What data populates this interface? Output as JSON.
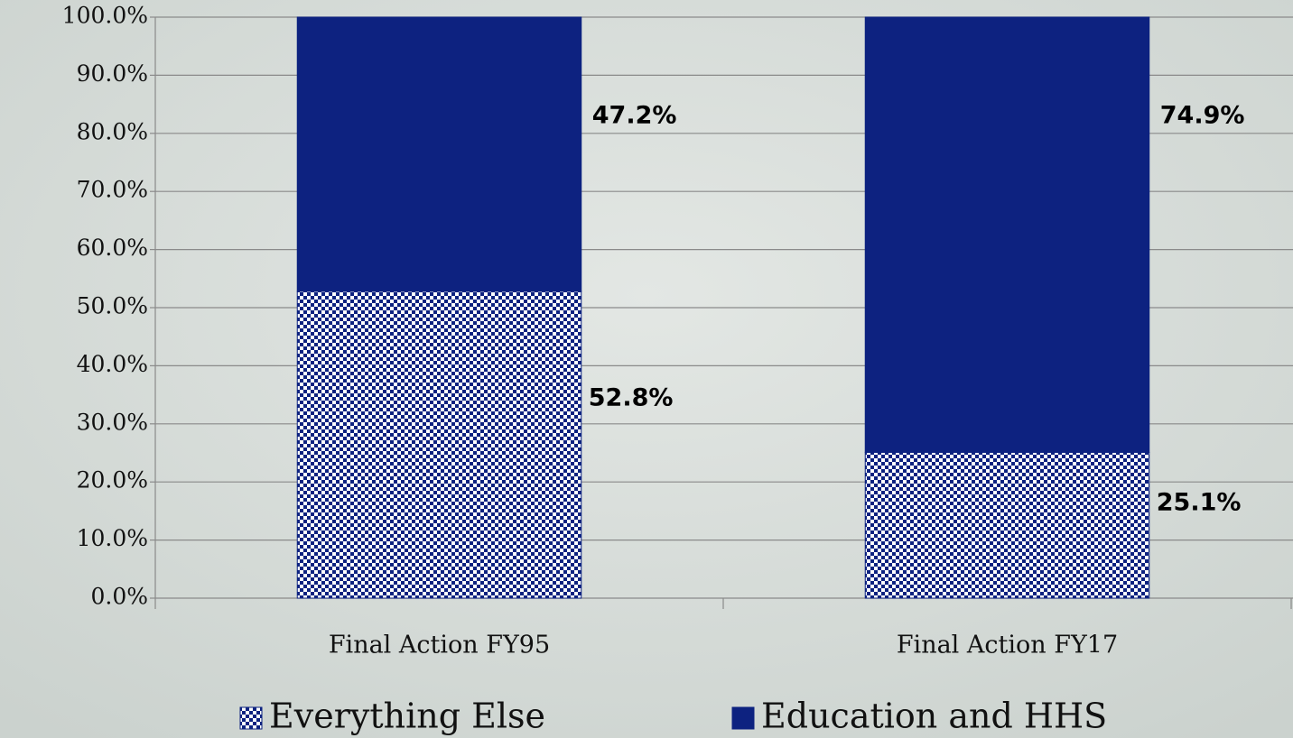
{
  "chart_data": {
    "type": "stacked_bar",
    "categories": [
      "Final Action FY95",
      "Final Action FY17"
    ],
    "series": [
      {
        "name": "Everything Else",
        "color": "#0d2280",
        "pattern": "checker",
        "values": [
          52.8,
          25.1
        ],
        "value_labels": [
          "52.8%",
          "25.1%"
        ]
      },
      {
        "name": "Education and HHS",
        "color": "#0d2280",
        "values": [
          47.2,
          74.9
        ],
        "value_labels": [
          "47.2%",
          "74.9%"
        ]
      }
    ],
    "ylim": [
      0,
      100
    ],
    "yticks": [
      {
        "value": 0,
        "label": "0.0%"
      },
      {
        "value": 10,
        "label": "10.0%"
      },
      {
        "value": 20,
        "label": "20.0%"
      },
      {
        "value": 30,
        "label": "30.0%"
      },
      {
        "value": 40,
        "label": "40.0%"
      },
      {
        "value": 50,
        "label": "50.0%"
      },
      {
        "value": 60,
        "label": "60.0%"
      },
      {
        "value": 70,
        "label": "70.0%"
      },
      {
        "value": 80,
        "label": "80.0%"
      },
      {
        "value": 90,
        "label": "90.0%"
      },
      {
        "value": 100,
        "label": "100.0%"
      }
    ],
    "grid": true,
    "legend": "bottom"
  }
}
